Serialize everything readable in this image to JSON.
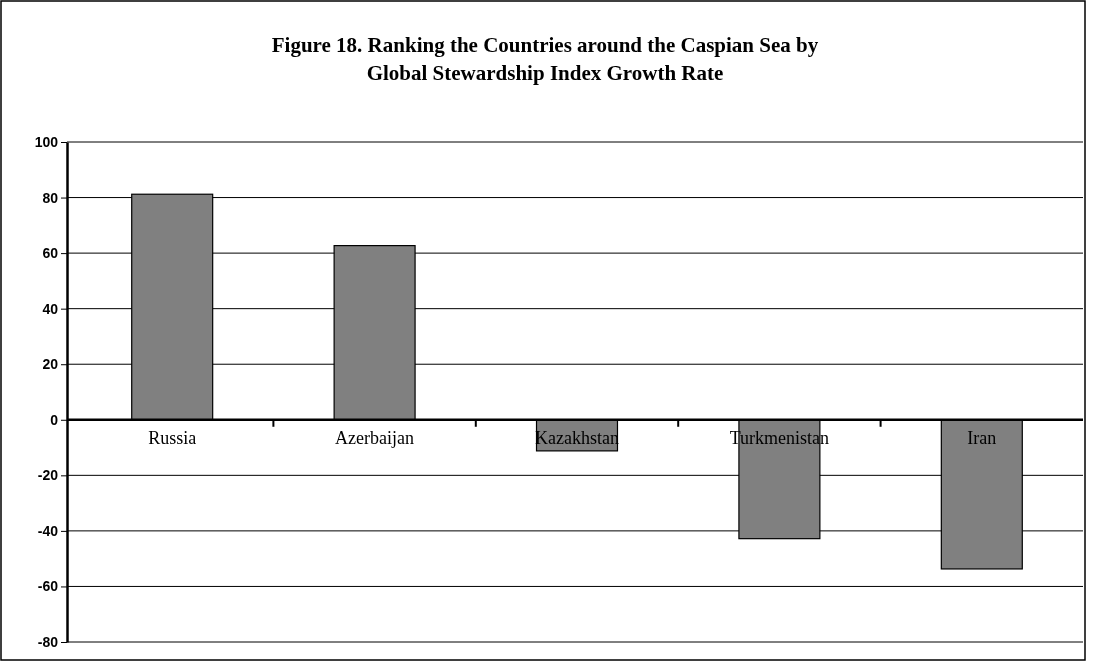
{
  "chart_data": {
    "type": "bar",
    "title": "Figure 18. Ranking the Countries around the Caspian Sea by\nGlobal Stewardship Index Growth Rate",
    "categories": [
      "Russia",
      "Azerbaijan",
      "Kazakhstan",
      "Turkmenistan",
      "Iran"
    ],
    "values": [
      81.2,
      62.7,
      -11.2,
      -42.8,
      -53.7
    ],
    "color": "#808080",
    "ylim": [
      -80,
      100
    ],
    "yticks": [
      -80,
      -60,
      -40,
      -20,
      0,
      20,
      40,
      60,
      80,
      100
    ],
    "grid": "y"
  }
}
